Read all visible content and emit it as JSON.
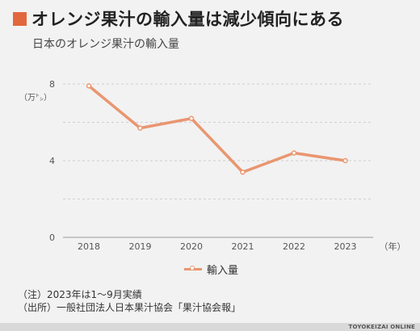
{
  "header": {
    "title": "オレンジ果汁の輸入量は減少傾向にある",
    "subtitle": "日本のオレンジ果汁の輸入量"
  },
  "colors": {
    "accent": "#e2673e",
    "series": "#e99670"
  },
  "chart_data": {
    "type": "line",
    "x": [
      "2018",
      "2019",
      "2020",
      "2021",
      "2022",
      "2023"
    ],
    "series": [
      {
        "name": "輸入量",
        "values": [
          7.9,
          5.7,
          6.2,
          3.4,
          4.4,
          4.0
        ]
      }
    ],
    "ylim": [
      0,
      8
    ],
    "yticks": [
      0,
      4,
      8
    ],
    "y_unit": "（万㌧）",
    "x_unit": "（年）",
    "grid": true,
    "legend": "bottom-center"
  },
  "notes": {
    "line1": "（注）2023年は1～9月実績",
    "line2": "（出所）一般社団法人日本果汁協会「果汁協会報」"
  },
  "brand": "TOYOKEIZAI ONLINE"
}
